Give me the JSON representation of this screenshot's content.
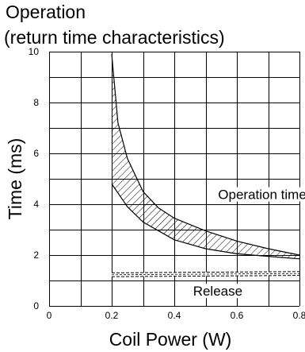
{
  "chart_data": {
    "type": "line",
    "title": "Operation",
    "subtitle": "(return time characteristics)",
    "xlabel": "Coil Power (W)",
    "ylabel": "Time (ms)",
    "xlim": [
      0,
      0.8
    ],
    "ylim": [
      0,
      10
    ],
    "x_ticks": [
      "0",
      "0.2",
      "0.4",
      "0.6",
      "0.8"
    ],
    "y_ticks": [
      "0",
      "2",
      "4",
      "6",
      "8",
      "10"
    ],
    "grid": true,
    "series": [
      {
        "name": "Operation time",
        "style": "hatched-band",
        "upper": {
          "x": [
            0.2,
            0.22,
            0.25,
            0.3,
            0.35,
            0.4,
            0.5,
            0.6,
            0.7,
            0.8
          ],
          "y": [
            9.9,
            7.2,
            5.8,
            4.5,
            3.85,
            3.45,
            2.95,
            2.55,
            2.25,
            2.0
          ]
        },
        "lower": {
          "x": [
            0.2,
            0.25,
            0.3,
            0.4,
            0.5,
            0.6,
            0.7,
            0.8
          ],
          "y": [
            4.8,
            3.9,
            3.3,
            2.6,
            2.25,
            2.05,
            1.95,
            1.85
          ]
        }
      },
      {
        "name": "Release",
        "style": "dashed-band",
        "upper": {
          "x": [
            0.2,
            0.8
          ],
          "y": [
            1.3,
            1.35
          ]
        },
        "lower": {
          "x": [
            0.2,
            0.8
          ],
          "y": [
            1.15,
            1.2
          ]
        }
      }
    ],
    "annotations": [
      {
        "text": "Operation time",
        "x": 0.54,
        "y": 4.2
      },
      {
        "text": "Release",
        "x": 0.46,
        "y": 0.4
      }
    ]
  }
}
